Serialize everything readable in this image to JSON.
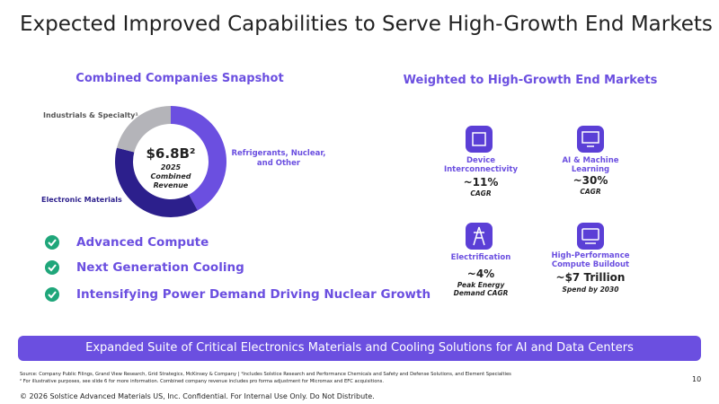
{
  "title": "Expected Improved Capabilities to Serve High-Growth End Markets",
  "snapshot_heading": "Combined Companies Snapshot",
  "chart_data": {
    "type": "pie",
    "categories": [
      "Refrigerants, Nuclear, and Other",
      "Electronic Materials",
      "Industrials & Specialty¹"
    ],
    "values": [
      42,
      37,
      21
    ],
    "colors": [
      "#6b4fe0",
      "#2c1f8c",
      "#b4b4b9"
    ],
    "center_value": "$6.8B²",
    "center_caption": [
      "2025",
      "Combined",
      "Revenue"
    ]
  },
  "checklist": [
    "Advanced Compute",
    "Next Generation Cooling",
    "Intensifying Power Demand Driving Nuclear Growth"
  ],
  "markets_heading": "Weighted to High-Growth End Markets",
  "markets": [
    {
      "label": "Device Interconnectivity",
      "value": "~11%",
      "note": "CAGR"
    },
    {
      "label": "AI & Machine Learning",
      "value": "~30%",
      "note": "CAGR"
    },
    {
      "label": "Electrification",
      "value": "~4%",
      "note": "Peak Energy Demand CAGR"
    },
    {
      "label": "High-Performance Compute Buildout",
      "value": "~$7 Trillion",
      "note": "Spend by 2030"
    }
  ],
  "banner": "Expanded Suite of Critical Electronics Materials and Cooling Solutions for AI and Data Centers",
  "sources": [
    "Source: Company Public Filings, Grand View Research, Grid Strategics, McKinsey & Company | ¹Includes Solstice Research and Performance Chemicals and Safety and Defense Solutions, and Element Specialties",
    "² For illustrative purposes, see slide 6 for more information. Combined company revenue includes pro forma adjustment for Micromax and EFC acquisitions."
  ],
  "page_number": "10",
  "copyright": "© 2026 Solstice Advanced Materials US, Inc. Confidential. For Internal Use Only. Do Not Distribute."
}
